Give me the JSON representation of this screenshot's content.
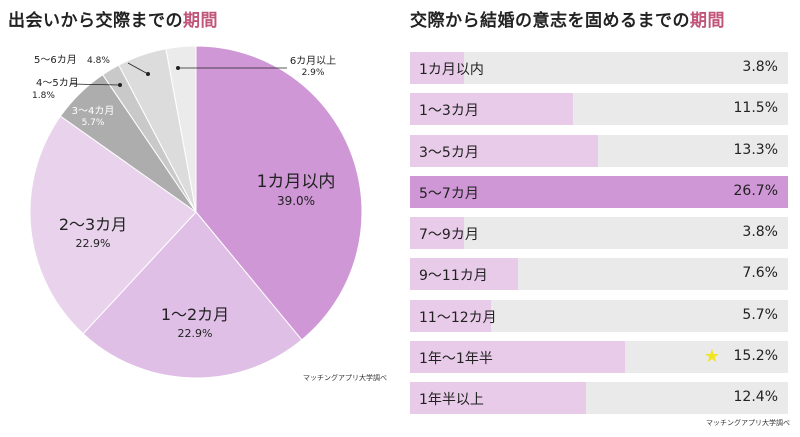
{
  "left": {
    "title_main": "出会いから交際までの",
    "title_accent": "期間",
    "credit": "マッチングアプリ大学調べ"
  },
  "right": {
    "title_main": "交際から結婚の意志を固めるまでの",
    "title_accent": "期間",
    "credit": "マッチングアプリ大学調べ"
  },
  "colors": {
    "accent": "#c0577a",
    "pie": [
      "#cf97d6",
      "#e0bfe6",
      "#e9d2ec",
      "#adadad",
      "#c9c9c9",
      "#dcdcdc",
      "#ebebeb"
    ],
    "bar_normal": "#e8cbe8",
    "bar_highlight": "#cf97d6",
    "bar_bg": "#ebeaea",
    "star": "#f1e521"
  },
  "chart_data": [
    {
      "type": "pie",
      "title": "出会いから交際までの期間",
      "slices": [
        {
          "label": "1カ月以内",
          "value": 39.0,
          "display": "39.0%"
        },
        {
          "label": "1〜2カ月",
          "value": 22.9,
          "display": "22.9%"
        },
        {
          "label": "2〜3カ月",
          "value": 22.9,
          "display": "22.9%"
        },
        {
          "label": "3〜4カ月",
          "value": 5.7,
          "display": "5.7%"
        },
        {
          "label": "4〜5カ月",
          "value": 1.8,
          "display": "1.8%"
        },
        {
          "label": "5〜6カ月",
          "value": 4.8,
          "display": "4.8%"
        },
        {
          "label": "6カ月以上",
          "value": 2.9,
          "display": "2.9%"
        }
      ]
    },
    {
      "type": "bar",
      "title": "交際から結婚の意志を固めるまでの期間",
      "categories": [
        "1カ月以内",
        "1〜3カ月",
        "3〜5カ月",
        "5〜7カ月",
        "7〜9カ月",
        "9〜11カ月",
        "11〜12カ月",
        "1年〜1年半",
        "1年半以上"
      ],
      "values": [
        3.8,
        11.5,
        13.3,
        26.7,
        3.8,
        7.6,
        5.7,
        15.2,
        12.4
      ],
      "display": [
        "3.8%",
        "11.5%",
        "13.3%",
        "26.7%",
        "3.8%",
        "7.6%",
        "5.7%",
        "15.2%",
        "12.4%"
      ],
      "highlight_index": 3,
      "star_index": 7,
      "xlim": [
        0,
        26.7
      ]
    }
  ]
}
